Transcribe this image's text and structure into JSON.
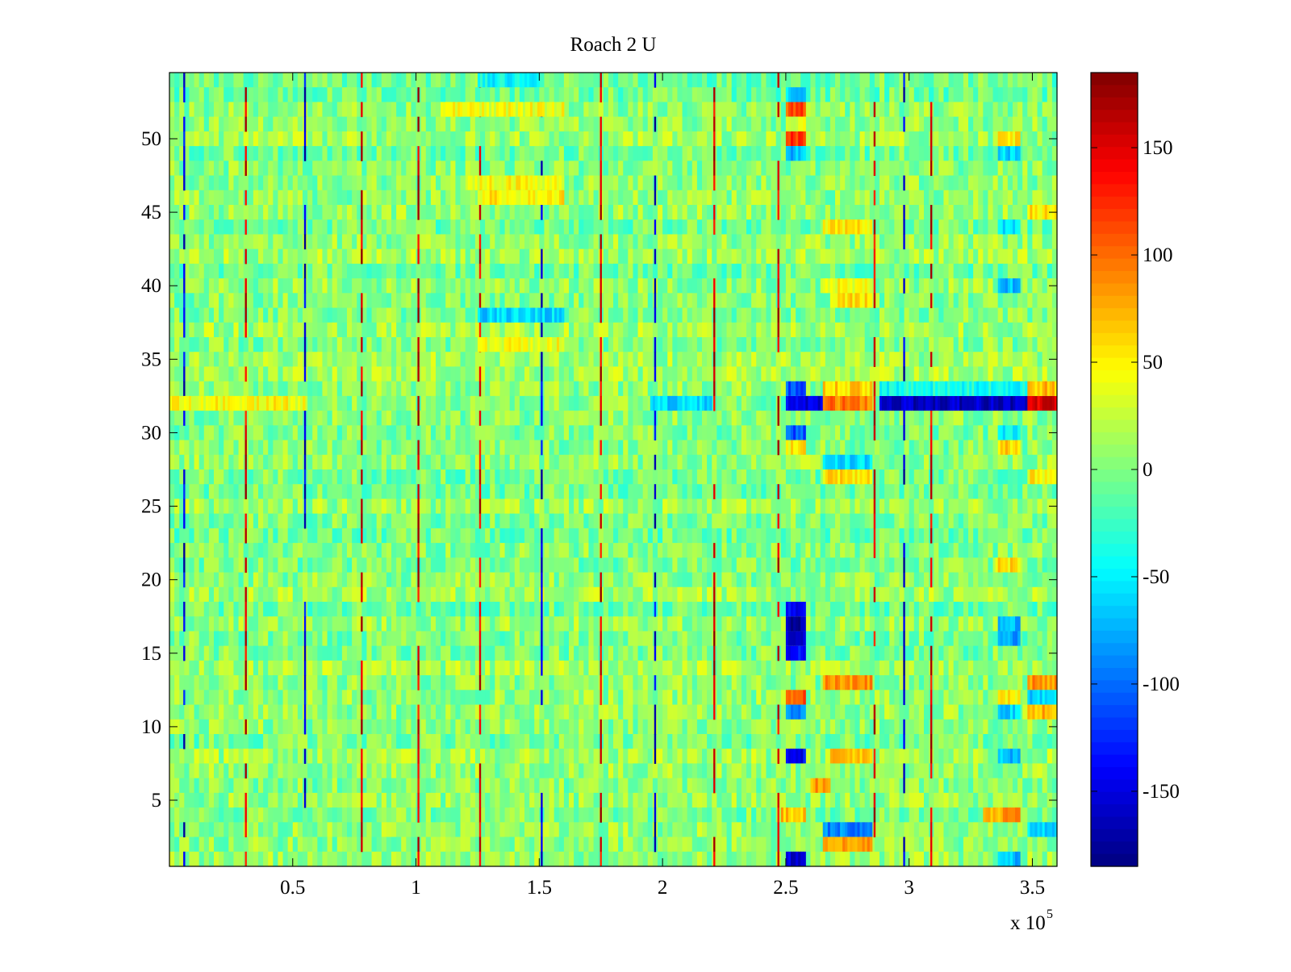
{
  "chart_data": {
    "type": "heatmap",
    "title": "Roach 2 U",
    "xlabel": "",
    "ylabel": "",
    "x_range": [
      0,
      360000
    ],
    "y_range": [
      0.5,
      54.5
    ],
    "x_ticks": [
      50000,
      100000,
      150000,
      200000,
      250000,
      300000,
      350000
    ],
    "x_tick_labels": [
      "0.5",
      "1",
      "1.5",
      "2",
      "2.5",
      "3",
      "3.5"
    ],
    "x_exponent_label": "x 10",
    "x_exponent_power": "5",
    "y_ticks": [
      5,
      10,
      15,
      20,
      25,
      30,
      35,
      40,
      45,
      50
    ],
    "y_tick_labels": [
      "5",
      "10",
      "15",
      "20",
      "25",
      "30",
      "35",
      "40",
      "45",
      "50"
    ],
    "n_rows": 54,
    "colormap": "jet",
    "clim": [
      -185,
      185
    ],
    "colorbar": {
      "ticks": [
        -150,
        -100,
        -50,
        0,
        50,
        100,
        150
      ],
      "tick_labels": [
        "-150",
        "-100",
        "-50",
        "0",
        "50",
        "100",
        "150"
      ]
    },
    "vertical_spike_columns": [
      {
        "x": 6000,
        "sign": -1
      },
      {
        "x": 31000,
        "sign": 1
      },
      {
        "x": 55000,
        "sign": -1
      },
      {
        "x": 78000,
        "sign": 1
      },
      {
        "x": 101000,
        "sign": 1
      },
      {
        "x": 126000,
        "sign": 1
      },
      {
        "x": 151000,
        "sign": -1
      },
      {
        "x": 175000,
        "sign": 1
      },
      {
        "x": 197000,
        "sign": -1
      },
      {
        "x": 221000,
        "sign": 1
      },
      {
        "x": 247000,
        "sign": 1
      },
      {
        "x": 286000,
        "sign": 1
      },
      {
        "x": 298000,
        "sign": -1
      },
      {
        "x": 309000,
        "sign": 1
      }
    ],
    "features": [
      {
        "row": 32,
        "x0": 0,
        "x1": 55000,
        "value": 45
      },
      {
        "row": 32,
        "x0": 195000,
        "x1": 220000,
        "value": -60
      },
      {
        "row": 32,
        "x0": 250000,
        "x1": 265000,
        "value": -150
      },
      {
        "row": 32,
        "x0": 265000,
        "x1": 285000,
        "value": 95
      },
      {
        "row": 32,
        "x0": 288000,
        "x1": 348000,
        "value": -160
      },
      {
        "row": 32,
        "x0": 348000,
        "x1": 360000,
        "value": 150
      },
      {
        "row": 33,
        "x0": 250000,
        "x1": 258000,
        "value": -110
      },
      {
        "row": 33,
        "x0": 265000,
        "x1": 285000,
        "value": 60
      },
      {
        "row": 33,
        "x0": 288000,
        "x1": 348000,
        "value": -40
      },
      {
        "row": 33,
        "x0": 348000,
        "x1": 360000,
        "value": 70
      },
      {
        "row": 30,
        "x0": 250000,
        "x1": 258000,
        "value": -110
      },
      {
        "row": 29,
        "x0": 250000,
        "x1": 258000,
        "value": 50
      },
      {
        "row": 28,
        "x0": 265000,
        "x1": 285000,
        "value": -60
      },
      {
        "row": 27,
        "x0": 265000,
        "x1": 285000,
        "value": 55
      },
      {
        "row": 52,
        "x0": 250000,
        "x1": 258000,
        "value": 110
      },
      {
        "row": 51,
        "x0": 250000,
        "x1": 258000,
        "value": 40
      },
      {
        "row": 50,
        "x0": 250000,
        "x1": 258000,
        "value": 120
      },
      {
        "row": 49,
        "x0": 250000,
        "x1": 258000,
        "value": -70
      },
      {
        "row": 53,
        "x0": 250000,
        "x1": 258000,
        "value": -60
      },
      {
        "row": 52,
        "x0": 110000,
        "x1": 160000,
        "value": 40
      },
      {
        "row": 47,
        "x0": 120000,
        "x1": 160000,
        "value": 45
      },
      {
        "row": 46,
        "x0": 125000,
        "x1": 160000,
        "value": 50
      },
      {
        "row": 36,
        "x0": 125000,
        "x1": 160000,
        "value": 40
      },
      {
        "row": 38,
        "x0": 125000,
        "x1": 160000,
        "value": -60
      },
      {
        "row": 17,
        "x0": 250000,
        "x1": 258000,
        "value": -170
      },
      {
        "row": 16,
        "x0": 250000,
        "x1": 258000,
        "value": -150
      },
      {
        "row": 15,
        "x0": 250000,
        "x1": 258000,
        "value": -130
      },
      {
        "row": 18,
        "x0": 250000,
        "x1": 258000,
        "value": -140
      },
      {
        "row": 12,
        "x0": 250000,
        "x1": 258000,
        "value": 110
      },
      {
        "row": 11,
        "x0": 250000,
        "x1": 258000,
        "value": -90
      },
      {
        "row": 8,
        "x0": 250000,
        "x1": 258000,
        "value": -140
      },
      {
        "row": 6,
        "x0": 260000,
        "x1": 268000,
        "value": 80
      },
      {
        "row": 4,
        "x0": 248000,
        "x1": 258000,
        "value": 70
      },
      {
        "row": 4,
        "x0": 330000,
        "x1": 345000,
        "value": 80
      },
      {
        "row": 3,
        "x0": 265000,
        "x1": 285000,
        "value": -90
      },
      {
        "row": 2,
        "x0": 265000,
        "x1": 285000,
        "value": 80
      },
      {
        "row": 1,
        "x0": 250000,
        "x1": 258000,
        "value": -150
      },
      {
        "row": 13,
        "x0": 265000,
        "x1": 285000,
        "value": 85
      },
      {
        "row": 13,
        "x0": 348000,
        "x1": 360000,
        "value": 85
      },
      {
        "row": 12,
        "x0": 348000,
        "x1": 360000,
        "value": -60
      },
      {
        "row": 11,
        "x0": 348000,
        "x1": 360000,
        "value": 75
      },
      {
        "row": 8,
        "x0": 268000,
        "x1": 285000,
        "value": 70
      },
      {
        "row": 40,
        "x0": 265000,
        "x1": 285000,
        "value": 45
      },
      {
        "row": 39,
        "x0": 268000,
        "x1": 285000,
        "value": 55
      },
      {
        "row": 44,
        "x0": 265000,
        "x1": 285000,
        "value": 50
      },
      {
        "row": 45,
        "x0": 348000,
        "x1": 360000,
        "value": 55
      },
      {
        "row": 44,
        "x0": 336000,
        "x1": 345000,
        "value": -60
      },
      {
        "row": 40,
        "x0": 336000,
        "x1": 345000,
        "value": -70
      },
      {
        "row": 17,
        "x0": 336000,
        "x1": 345000,
        "value": -70
      },
      {
        "row": 16,
        "x0": 336000,
        "x1": 345000,
        "value": -80
      },
      {
        "row": 21,
        "x0": 335000,
        "x1": 345000,
        "value": 55
      },
      {
        "row": 29,
        "x0": 336000,
        "x1": 345000,
        "value": 60
      },
      {
        "row": 30,
        "x0": 336000,
        "x1": 345000,
        "value": -50
      },
      {
        "row": 27,
        "x0": 348000,
        "x1": 360000,
        "value": 50
      },
      {
        "row": 49,
        "x0": 336000,
        "x1": 345000,
        "value": -60
      },
      {
        "row": 50,
        "x0": 336000,
        "x1": 345000,
        "value": 55
      },
      {
        "row": 1,
        "x0": 336000,
        "x1": 345000,
        "value": -70
      },
      {
        "row": 3,
        "x0": 348000,
        "x1": 360000,
        "value": -55
      },
      {
        "row": 12,
        "x0": 336000,
        "x1": 345000,
        "value": 55
      },
      {
        "row": 11,
        "x0": 336000,
        "x1": 345000,
        "value": -60
      },
      {
        "row": 8,
        "x0": 336000,
        "x1": 345000,
        "value": -70
      },
      {
        "row": 54,
        "x0": 125000,
        "x1": 150000,
        "value": -45
      }
    ]
  }
}
